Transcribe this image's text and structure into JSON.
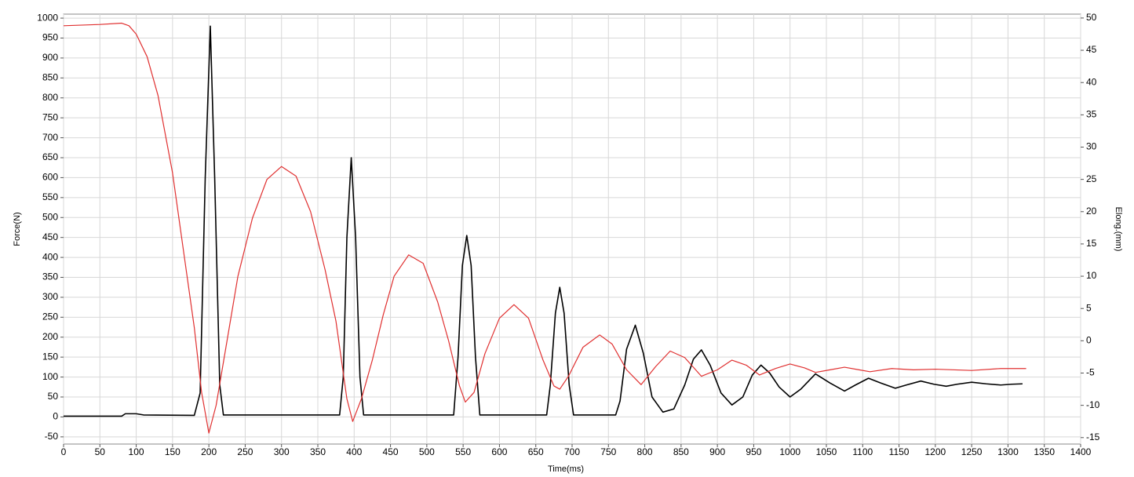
{
  "chart_data": {
    "type": "line",
    "xlabel": "Time(ms)",
    "ylabel": "Force(N)",
    "y2label": "Elong.(mm)",
    "xlim": [
      0,
      1400
    ],
    "ylim": [
      -68,
      1010
    ],
    "y2lim": [
      -16,
      50.6
    ],
    "xticks": [
      0,
      50,
      100,
      150,
      200,
      250,
      300,
      350,
      400,
      450,
      500,
      550,
      600,
      650,
      700,
      750,
      800,
      850,
      900,
      950,
      1000,
      1050,
      1100,
      1150,
      1200,
      1250,
      1300,
      1350,
      1400
    ],
    "yticks": [
      -50,
      0,
      50,
      100,
      150,
      200,
      250,
      300,
      350,
      400,
      450,
      500,
      550,
      600,
      650,
      700,
      750,
      800,
      850,
      900,
      950,
      1000
    ],
    "y2ticks": [
      -15,
      -10,
      -5,
      0,
      5,
      10,
      15,
      20,
      25,
      30,
      35,
      40,
      45,
      50
    ],
    "grid": true,
    "series": [
      {
        "color": "#000000",
        "axis": "y",
        "x": [
          0,
          80,
          85,
          100,
          110,
          180,
          188,
          195,
          202,
          208,
          215,
          220,
          380,
          385,
          390,
          396,
          402,
          408,
          413,
          537,
          543,
          549,
          555,
          561,
          567,
          573,
          665,
          670,
          677,
          683,
          689,
          696,
          702,
          760,
          766,
          775,
          787,
          798,
          810,
          825,
          840,
          855,
          867,
          878,
          890,
          905,
          920,
          935,
          948,
          960,
          972,
          985,
          1000,
          1015,
          1035,
          1055,
          1075,
          1090,
          1108,
          1125,
          1145,
          1160,
          1180,
          1198,
          1215,
          1230,
          1250,
          1270,
          1290,
          1305,
          1320
        ],
        "values": [
          2,
          2,
          8,
          8,
          5,
          4,
          60,
          600,
          980,
          600,
          80,
          5,
          5,
          100,
          450,
          650,
          450,
          100,
          5,
          5,
          150,
          380,
          455,
          380,
          150,
          5,
          5,
          80,
          260,
          325,
          260,
          80,
          5,
          5,
          40,
          170,
          230,
          160,
          50,
          12,
          20,
          80,
          145,
          168,
          130,
          60,
          30,
          50,
          105,
          130,
          110,
          75,
          50,
          70,
          108,
          85,
          65,
          80,
          97,
          85,
          72,
          80,
          90,
          82,
          77,
          82,
          87,
          83,
          80,
          82,
          83
        ]
      },
      {
        "color": "#e03030",
        "axis": "y2",
        "x": [
          0,
          50,
          80,
          90,
          100,
          115,
          130,
          150,
          165,
          180,
          190,
          200,
          210,
          225,
          240,
          260,
          280,
          300,
          320,
          340,
          360,
          375,
          390,
          398,
          410,
          425,
          440,
          455,
          475,
          495,
          515,
          530,
          545,
          553,
          565,
          580,
          600,
          620,
          640,
          660,
          675,
          683,
          695,
          715,
          738,
          755,
          775,
          795,
          815,
          835,
          855,
          878,
          900,
          920,
          940,
          958,
          980,
          1000,
          1020,
          1035,
          1055,
          1075,
          1095,
          1110,
          1140,
          1170,
          1200,
          1250,
          1290,
          1325
        ],
        "values": [
          48.8,
          49,
          49.2,
          48.8,
          47.5,
          44,
          38,
          26,
          14,
          2,
          -8,
          -14.3,
          -10,
          0,
          10,
          19,
          25,
          27,
          25.5,
          20,
          11,
          3,
          -9,
          -12.5,
          -9,
          -3,
          4,
          10,
          13.3,
          12,
          6,
          0,
          -7,
          -9.5,
          -8,
          -2,
          3.5,
          5.6,
          3.5,
          -3,
          -7,
          -7.5,
          -5.5,
          -1,
          0.9,
          -0.5,
          -4.5,
          -6.8,
          -4,
          -1.6,
          -2.6,
          -5.5,
          -4.5,
          -3,
          -3.8,
          -5.3,
          -4.3,
          -3.6,
          -4.2,
          -4.9,
          -4.5,
          -4.1,
          -4.5,
          -4.8,
          -4.3,
          -4.5,
          -4.4,
          -4.6,
          -4.3,
          -4.3
        ]
      }
    ]
  }
}
